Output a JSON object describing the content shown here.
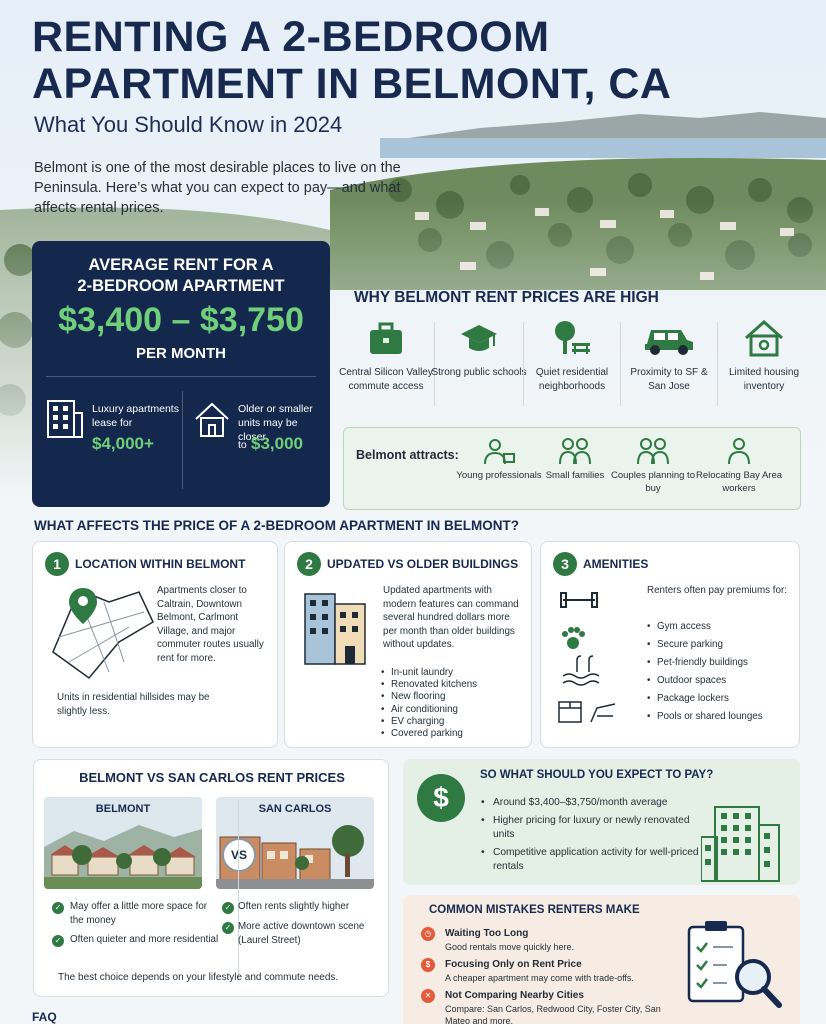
{
  "header": {
    "title_line1": "RENTING A 2-BEDROOM",
    "title_line2": "APARTMENT IN BELMONT, CA",
    "subtitle": "What You Should Know in 2024",
    "intro": "Belmont is one of the most desirable places to live on the Peninsula. Here’s what you can expect to pay—and what affects rental prices."
  },
  "average": {
    "heading_line1": "AVERAGE RENT FOR A",
    "heading_line2": "2-BEDROOM APARTMENT",
    "price": "$3,400 – $3,750",
    "per": "PER MONTH",
    "luxury_text": "Luxury apartments lease for",
    "luxury_value": "$4,000+",
    "older_text": "Older or smaller units may be closer",
    "older_prefix": "to",
    "older_value": "$3,000"
  },
  "why": {
    "heading": "WHY BELMONT RENT PRICES ARE HIGH",
    "items": [
      {
        "icon": "briefcase-icon",
        "label": "Central Silicon Valley commute access"
      },
      {
        "icon": "graduation-cap-icon",
        "label": "Strong public schools"
      },
      {
        "icon": "tree-bench-icon",
        "label": "Quiet residential neighborhoods"
      },
      {
        "icon": "car-icon",
        "label": "Proximity to SF & San Jose"
      },
      {
        "icon": "house-icon",
        "label": "Limited housing inventory"
      }
    ]
  },
  "attracts": {
    "label": "Belmont attracts:",
    "items": [
      {
        "icon": "professionals-icon",
        "label": "Young professionals"
      },
      {
        "icon": "family-icon",
        "label": "Small families"
      },
      {
        "icon": "couple-icon",
        "label": "Couples planning to buy"
      },
      {
        "icon": "worker-icon",
        "label": "Relocating Bay Area workers"
      }
    ]
  },
  "affects": {
    "heading": "WHAT AFFECTS THE PRICE OF A 2-BEDROOM APARTMENT IN BELMONT?",
    "location": {
      "num": "1",
      "title": "LOCATION WITHIN BELMONT",
      "text": "Apartments closer to Caltrain, Downtown Belmont, Carlmont Village, and major commuter routes usually rent for more.",
      "note": "Units in residential hillsides may be slightly less."
    },
    "buildings": {
      "num": "2",
      "title": "UPDATED VS OLDER BUILDINGS",
      "text": "Updated apartments with modern features can command several hundred dollars more per month than older buildings without updates.",
      "features": [
        "In-unit laundry",
        "Renovated kitchens",
        "New flooring",
        "Air conditioning",
        "EV charging",
        "Covered parking"
      ]
    },
    "amenities": {
      "num": "3",
      "title": "AMENITIES",
      "intro": "Renters often pay premiums for:",
      "items": [
        "Gym access",
        "Secure parking",
        "Pet-friendly buildings",
        "Outdoor spaces",
        "Package lockers",
        "Pools or shared lounges"
      ]
    }
  },
  "compare": {
    "heading": "BELMONT VS SAN CARLOS RENT PRICES",
    "belmont": "BELMONT",
    "san_carlos": "SAN CARLOS",
    "vs": "VS",
    "belmont_points": [
      "May offer a little more space for the money",
      "Often quieter and more residential"
    ],
    "san_carlos_points": [
      "Often rents slightly higher",
      "More active downtown scene (Laurel Street)"
    ],
    "footer": "The best choice depends on your lifestyle and commute needs."
  },
  "expect": {
    "heading": "SO WHAT SHOULD YOU EXPECT TO PAY?",
    "symbol": "$",
    "items": [
      "Around $3,400–$3,750/month average",
      "Higher pricing for luxury or newly renovated units",
      "Competitive application activity for well-priced rentals"
    ]
  },
  "mistakes": {
    "heading": "COMMON MISTAKES RENTERS MAKE",
    "items": [
      {
        "icon": "clock-icon",
        "title": "Waiting Too Long",
        "desc": "Good rentals move quickly here."
      },
      {
        "icon": "dollar-icon",
        "title": "Focusing Only on Rent Price",
        "desc": "A cheaper apartment may come with trade-offs."
      },
      {
        "icon": "x-icon",
        "title": "Not Comparing Nearby Cities",
        "desc": "Compare: San Carlos, Redwood City, Foster City, San Mateo and more."
      }
    ]
  },
  "faq": {
    "label": "FAQ"
  },
  "colors": {
    "navy": "#14284d",
    "green": "#2f7a43",
    "accent_green": "#6fcf7a",
    "coral": "#e35b3a"
  }
}
